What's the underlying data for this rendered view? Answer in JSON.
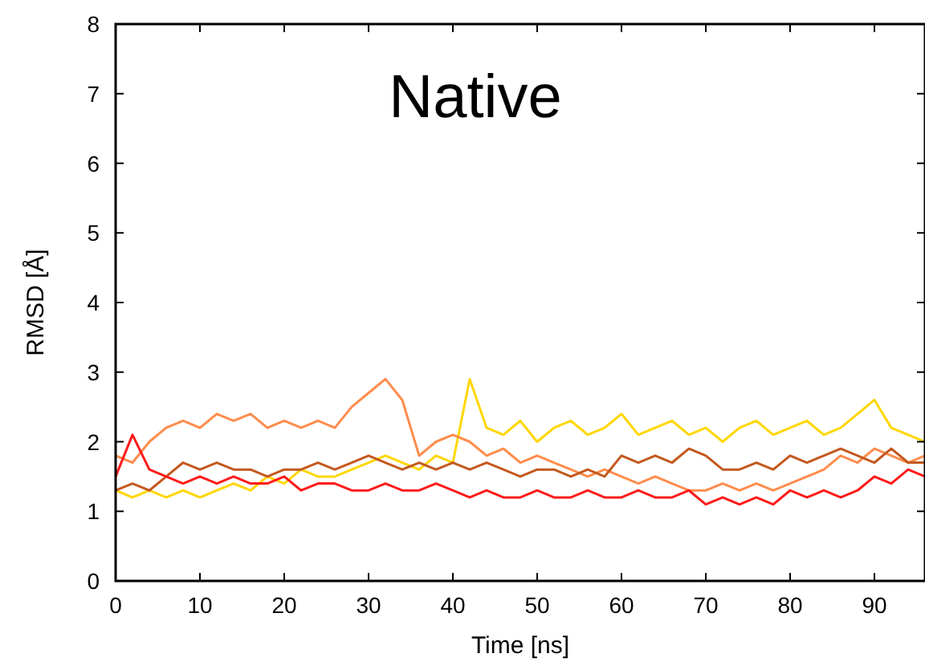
{
  "chart_data": {
    "type": "line",
    "title": "Native",
    "xlabel": "Time [ns]",
    "ylabel": "RMSD [Å]",
    "x": [
      0,
      2,
      4,
      6,
      8,
      10,
      12,
      14,
      16,
      18,
      20,
      22,
      24,
      26,
      28,
      30,
      32,
      34,
      36,
      38,
      40,
      42,
      44,
      46,
      48,
      50,
      52,
      54,
      56,
      58,
      60,
      62,
      64,
      66,
      68,
      70,
      72,
      74,
      76,
      78,
      80,
      82,
      84,
      86,
      88,
      90,
      92,
      94,
      96
    ],
    "xlim": [
      0,
      96
    ],
    "xticks": [
      0,
      10,
      20,
      30,
      40,
      50,
      60,
      70,
      80,
      90
    ],
    "ylim": [
      0,
      8
    ],
    "yticks": [
      0,
      1,
      2,
      3,
      4,
      5,
      6,
      7,
      8
    ],
    "grid": false,
    "marker": "none",
    "line_style": "solid",
    "series": [
      {
        "color": "#ffd700",
        "values": [
          1.3,
          1.2,
          1.3,
          1.2,
          1.3,
          1.2,
          1.3,
          1.4,
          1.3,
          1.5,
          1.4,
          1.6,
          1.5,
          1.5,
          1.6,
          1.7,
          1.8,
          1.7,
          1.6,
          1.8,
          1.7,
          2.9,
          2.2,
          2.1,
          2.3,
          2.0,
          2.2,
          2.3,
          2.1,
          2.2,
          2.4,
          2.1,
          2.2,
          2.3,
          2.1,
          2.2,
          2.0,
          2.2,
          2.3,
          2.1,
          2.2,
          2.3,
          2.1,
          2.2,
          2.4,
          2.6,
          2.2,
          2.1,
          2.0
        ]
      },
      {
        "color": "#ff8c4c",
        "values": [
          1.8,
          1.7,
          2.0,
          2.2,
          2.3,
          2.2,
          2.4,
          2.3,
          2.4,
          2.2,
          2.3,
          2.2,
          2.3,
          2.2,
          2.5,
          2.7,
          2.9,
          2.6,
          1.8,
          2.0,
          2.1,
          2.0,
          1.8,
          1.9,
          1.7,
          1.8,
          1.7,
          1.6,
          1.5,
          1.6,
          1.5,
          1.4,
          1.5,
          1.4,
          1.3,
          1.3,
          1.4,
          1.3,
          1.4,
          1.3,
          1.4,
          1.5,
          1.6,
          1.8,
          1.7,
          1.9,
          1.8,
          1.7,
          1.8
        ]
      },
      {
        "color": "#c4581e",
        "values": [
          1.3,
          1.4,
          1.3,
          1.5,
          1.7,
          1.6,
          1.7,
          1.6,
          1.6,
          1.5,
          1.6,
          1.6,
          1.7,
          1.6,
          1.7,
          1.8,
          1.7,
          1.6,
          1.7,
          1.6,
          1.7,
          1.6,
          1.7,
          1.6,
          1.5,
          1.6,
          1.6,
          1.5,
          1.6,
          1.5,
          1.8,
          1.7,
          1.8,
          1.7,
          1.9,
          1.8,
          1.6,
          1.6,
          1.7,
          1.6,
          1.8,
          1.7,
          1.8,
          1.9,
          1.8,
          1.7,
          1.9,
          1.7,
          1.7
        ]
      },
      {
        "color": "#ff1a1a",
        "values": [
          1.5,
          2.1,
          1.6,
          1.5,
          1.4,
          1.5,
          1.4,
          1.5,
          1.4,
          1.4,
          1.5,
          1.3,
          1.4,
          1.4,
          1.3,
          1.3,
          1.4,
          1.3,
          1.3,
          1.4,
          1.3,
          1.2,
          1.3,
          1.2,
          1.2,
          1.3,
          1.2,
          1.2,
          1.3,
          1.2,
          1.2,
          1.3,
          1.2,
          1.2,
          1.3,
          1.1,
          1.2,
          1.1,
          1.2,
          1.1,
          1.3,
          1.2,
          1.3,
          1.2,
          1.3,
          1.5,
          1.4,
          1.6,
          1.5
        ]
      }
    ]
  }
}
